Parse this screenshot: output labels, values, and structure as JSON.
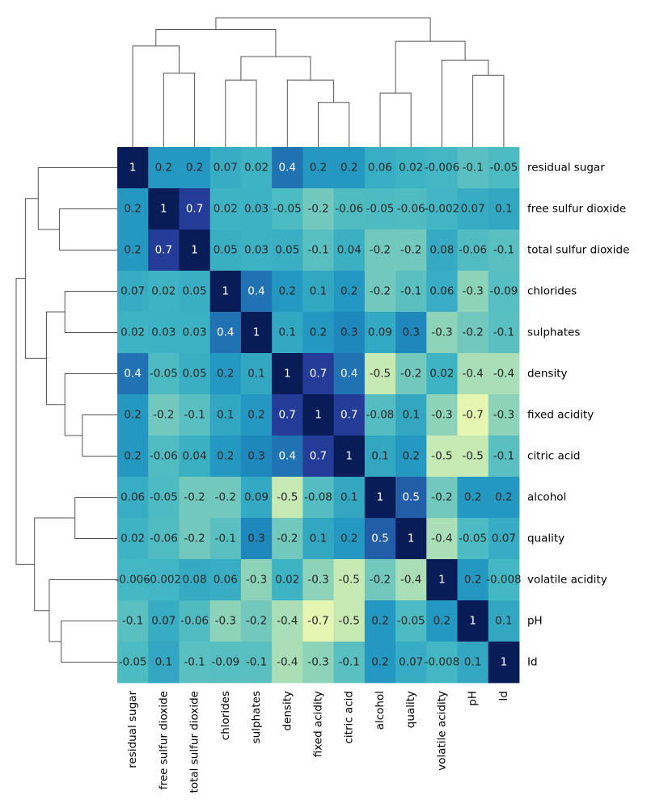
{
  "chart_data": {
    "type": "heatmap",
    "title": "",
    "xlabel": "",
    "ylabel": "",
    "colormap": "YlGnBu",
    "value_range": [
      -1,
      1
    ],
    "rows": [
      "residual sugar",
      "free sulfur dioxide",
      "total sulfur dioxide",
      "chlorides",
      "sulphates",
      "density",
      "fixed acidity",
      "citric acid",
      "alcohol",
      "quality",
      "volatile acidity",
      "pH",
      "Id"
    ],
    "columns": [
      "residual sugar",
      "free sulfur dioxide",
      "total sulfur dioxide",
      "chlorides",
      "sulphates",
      "density",
      "fixed acidity",
      "citric acid",
      "alcohol",
      "quality",
      "volatile acidity",
      "pH",
      "Id"
    ],
    "values": [
      [
        1,
        0.2,
        0.2,
        0.07,
        0.02,
        0.4,
        0.2,
        0.2,
        0.06,
        0.02,
        -0.006,
        -0.1,
        -0.05
      ],
      [
        0.2,
        1,
        0.7,
        0.02,
        0.03,
        -0.05,
        -0.2,
        -0.06,
        -0.05,
        -0.06,
        -0.002,
        0.07,
        0.1
      ],
      [
        0.2,
        0.7,
        1,
        0.05,
        0.03,
        0.05,
        -0.1,
        0.04,
        -0.2,
        -0.2,
        0.08,
        -0.06,
        -0.1
      ],
      [
        0.07,
        0.02,
        0.05,
        1,
        0.4,
        0.2,
        0.1,
        0.2,
        -0.2,
        -0.1,
        0.06,
        -0.3,
        -0.09
      ],
      [
        0.02,
        0.03,
        0.03,
        0.4,
        1,
        0.1,
        0.2,
        0.3,
        0.09,
        0.3,
        -0.3,
        -0.2,
        -0.1
      ],
      [
        0.4,
        -0.05,
        0.05,
        0.2,
        0.1,
        1,
        0.7,
        0.4,
        -0.5,
        -0.2,
        0.02,
        -0.4,
        -0.4
      ],
      [
        0.2,
        -0.2,
        -0.1,
        0.1,
        0.2,
        0.7,
        1,
        0.7,
        -0.08,
        0.1,
        -0.3,
        -0.7,
        -0.3
      ],
      [
        0.2,
        -0.06,
        0.04,
        0.2,
        0.3,
        0.4,
        0.7,
        1,
        0.1,
        0.2,
        -0.5,
        -0.5,
        -0.1
      ],
      [
        0.06,
        -0.05,
        -0.2,
        -0.2,
        0.09,
        -0.5,
        -0.08,
        0.1,
        1,
        0.5,
        -0.2,
        0.2,
        0.2
      ],
      [
        0.02,
        -0.06,
        -0.2,
        -0.1,
        0.3,
        -0.2,
        0.1,
        0.2,
        0.5,
        1,
        -0.4,
        -0.05,
        0.07
      ],
      [
        -0.006,
        -0.002,
        0.08,
        0.06,
        -0.3,
        0.02,
        -0.3,
        -0.5,
        -0.2,
        -0.4,
        1,
        0.2,
        -0.008
      ],
      [
        -0.1,
        0.07,
        -0.06,
        -0.3,
        -0.2,
        -0.4,
        -0.7,
        -0.5,
        0.2,
        -0.05,
        0.2,
        1,
        0.1
      ],
      [
        -0.05,
        0.1,
        -0.1,
        -0.09,
        -0.1,
        -0.4,
        -0.3,
        -0.1,
        0.2,
        0.07,
        -0.008,
        0.1,
        1
      ]
    ],
    "dendrogram": {
      "merges": [
        [
          1,
          2,
          0.63
        ],
        [
          3,
          4,
          0.57
        ],
        [
          6,
          7,
          0.38
        ],
        [
          5,
          15,
          0.57
        ],
        [
          14,
          16,
          0.77
        ],
        [
          8,
          9,
          0.46
        ],
        [
          11,
          12,
          0.61
        ],
        [
          10,
          19,
          0.74
        ],
        [
          0,
          13,
          0.86
        ],
        [
          18,
          20,
          0.9
        ],
        [
          21,
          17,
          1.0
        ],
        [
          22,
          23,
          1.1
        ]
      ]
    }
  }
}
